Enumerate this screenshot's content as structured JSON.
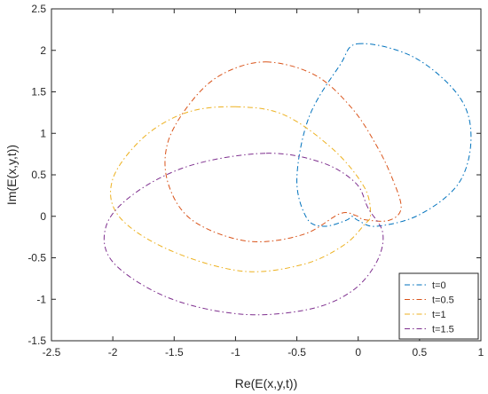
{
  "chart_data": {
    "type": "line",
    "title": "",
    "xlabel": "Re(E(x,y,t))",
    "ylabel": "Im(E(x,y,t))",
    "xlim": [
      -2.5,
      1
    ],
    "ylim": [
      -1.5,
      2.5
    ],
    "xticks": [
      "-2.5",
      "-2",
      "-1.5",
      "-1",
      "-0.5",
      "0",
      "0.5",
      "1"
    ],
    "yticks": [
      "-1.5",
      "-1",
      "-0.5",
      "0",
      "0.5",
      "1",
      "1.5",
      "2",
      "2.5"
    ],
    "grid": false,
    "legend_position": "bottom-right",
    "line_style": "dash-dot",
    "series": [
      {
        "name": "t=0",
        "color": "#0072BD",
        "x": [
          0.0,
          0.45,
          0.82,
          0.92,
          0.82,
          0.5,
          0.15,
          0.0,
          -0.05,
          -0.1,
          -0.28,
          -0.42,
          -0.5,
          -0.4,
          -0.15,
          0.0
        ],
        "y": [
          2.08,
          1.92,
          1.45,
          0.95,
          0.4,
          0.02,
          -0.12,
          -0.05,
          0.0,
          -0.05,
          -0.12,
          -0.02,
          0.45,
          1.2,
          1.82,
          2.08
        ]
      },
      {
        "name": "t=0.5",
        "color": "#D95319",
        "x": [
          -0.75,
          -0.35,
          -0.05,
          0.15,
          0.28,
          0.35,
          0.25,
          0.05,
          -0.02,
          -0.15,
          -0.45,
          -0.9,
          -1.35,
          -1.55,
          -1.55,
          -1.35,
          -1.1,
          -0.75
        ],
        "y": [
          1.86,
          1.7,
          1.3,
          0.85,
          0.45,
          0.1,
          -0.05,
          -0.04,
          0.01,
          0.03,
          -0.22,
          -0.3,
          -0.05,
          0.4,
          0.9,
          1.4,
          1.72,
          1.86
        ]
      },
      {
        "name": "t=1",
        "color": "#EDB120",
        "x": [
          -1.0,
          -0.6,
          -0.2,
          0.05,
          0.1,
          0.05,
          -0.12,
          -0.45,
          -0.95,
          -1.55,
          -1.95,
          -2.0,
          -1.75,
          -1.4,
          -1.0
        ],
        "y": [
          1.32,
          1.22,
          0.8,
          0.35,
          0.02,
          -0.1,
          -0.35,
          -0.58,
          -0.66,
          -0.4,
          0.0,
          0.45,
          0.95,
          1.25,
          1.32
        ]
      },
      {
        "name": "t=1.5",
        "color": "#7E2F8E",
        "x": [
          -0.75,
          -0.3,
          -0.02,
          0.08,
          0.2,
          0.15,
          -0.05,
          -0.4,
          -0.95,
          -1.55,
          -2.0,
          -2.05,
          -1.8,
          -1.35,
          -0.75
        ],
        "y": [
          0.76,
          0.65,
          0.4,
          0.1,
          -0.2,
          -0.55,
          -0.9,
          -1.12,
          -1.18,
          -0.98,
          -0.55,
          -0.1,
          0.3,
          0.62,
          0.76
        ]
      }
    ]
  }
}
